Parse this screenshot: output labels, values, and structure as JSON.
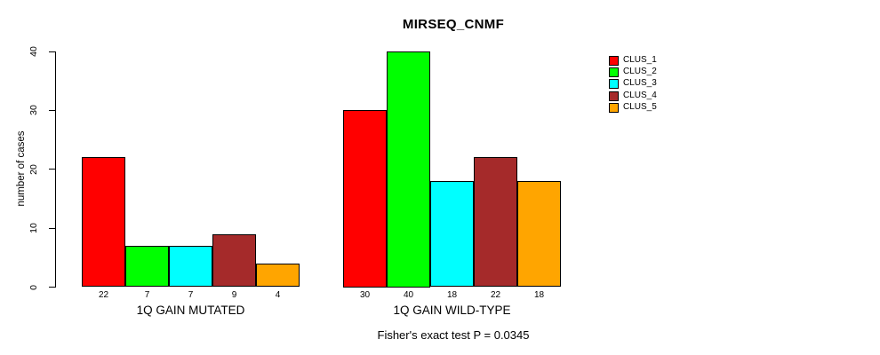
{
  "title": "MIRSEQ_CNMF",
  "caption": "Fisher's exact test P = 0.0345",
  "chart_data": {
    "type": "bar",
    "title": "MIRSEQ_CNMF",
    "ylabel": "number of cases",
    "ylim": [
      0,
      40
    ],
    "yticks": [
      0,
      10,
      20,
      30,
      40
    ],
    "grid": false,
    "legend_position": "right",
    "series": [
      {
        "name": "CLUS_1",
        "color": "#FF0000"
      },
      {
        "name": "CLUS_2",
        "color": "#00FF00"
      },
      {
        "name": "CLUS_3",
        "color": "#00FFFF"
      },
      {
        "name": "CLUS_4",
        "color": "#A52A2A"
      },
      {
        "name": "CLUS_5",
        "color": "#FFA500"
      }
    ],
    "groups": [
      {
        "label": "1Q GAIN MUTATED",
        "values": [
          22,
          7,
          7,
          9,
          4
        ]
      },
      {
        "label": "1Q GAIN WILD-TYPE",
        "values": [
          30,
          40,
          18,
          22,
          18
        ]
      }
    ],
    "annotation": "Fisher's exact test P = 0.0345"
  }
}
